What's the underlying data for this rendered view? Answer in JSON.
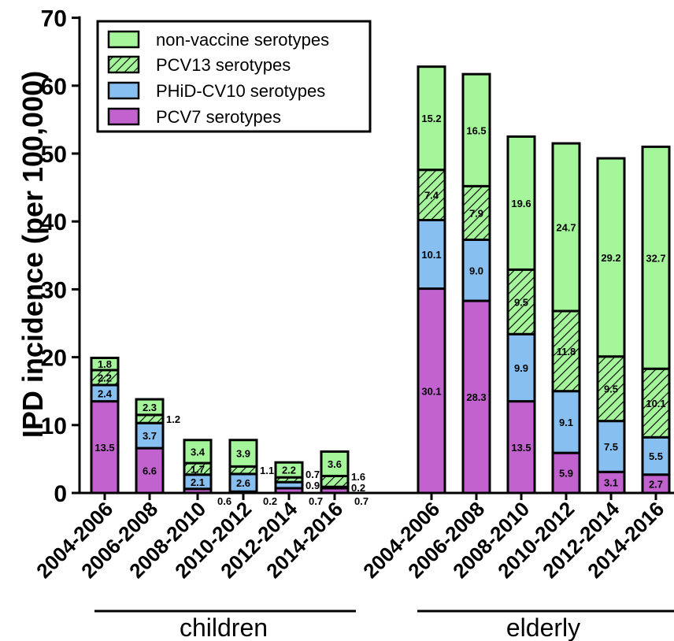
{
  "chart_data": {
    "type": "bar",
    "stacked": true,
    "ylabel": "IPD incidence (per 100,000)",
    "ylim": [
      0,
      70
    ],
    "yticks": [
      0,
      10,
      20,
      30,
      40,
      50,
      60,
      70
    ],
    "legend": "top-left",
    "groups": [
      {
        "label": "children",
        "categories": [
          "2004-2006",
          "2006-2008",
          "2008-2010",
          "2010-2012",
          "2012-2014",
          "2014-2016"
        ]
      },
      {
        "label": "elderly",
        "categories": [
          "2004-2006",
          "2006-2008",
          "2008-2010",
          "2010-2012",
          "2012-2014",
          "2014-2016"
        ]
      }
    ],
    "series": [
      {
        "name": "PCV7 serotypes",
        "color": "#c162cf",
        "pattern": "solid",
        "values": [
          13.5,
          6.6,
          0.6,
          0.2,
          0.7,
          0.7,
          30.1,
          28.3,
          13.5,
          5.9,
          3.1,
          2.7
        ],
        "labels": [
          "13.5",
          "6.6",
          "0.6",
          "0.2",
          "0.7",
          "0.7",
          "30.1",
          "28.3",
          "13.5",
          "5.9",
          "3.1",
          "2.7"
        ]
      },
      {
        "name": "PHiD-CV10 serotypes",
        "color": "#86bff0",
        "pattern": "solid",
        "values": [
          2.4,
          3.7,
          2.1,
          2.6,
          0.9,
          0.2,
          10.1,
          9.0,
          9.9,
          9.1,
          7.5,
          5.5
        ],
        "labels": [
          "2.4",
          "3.7",
          "2.1",
          "2.6",
          "0.9",
          "0.2",
          "10.1",
          "9.0",
          "9.9",
          "9.1",
          "7.5",
          "5.5"
        ]
      },
      {
        "name": "PCV13 serotypes",
        "color": "#a5f59a",
        "pattern": "hatched",
        "values": [
          2.2,
          1.2,
          1.7,
          1.1,
          0.7,
          1.6,
          7.4,
          7.9,
          9.5,
          11.8,
          9.5,
          10.1
        ],
        "labels": [
          "2.2",
          "1.2",
          "1.7",
          "1.1",
          "0.7",
          "1.6",
          "7.4",
          "7.9",
          "9.5",
          "11.8",
          "9.5",
          "10.1"
        ]
      },
      {
        "name": "non-vaccine serotypes",
        "color": "#a5f59a",
        "pattern": "solid",
        "values": [
          1.8,
          2.3,
          3.4,
          3.9,
          2.2,
          3.6,
          15.2,
          16.5,
          19.6,
          24.7,
          29.2,
          32.7
        ],
        "labels": [
          "1.8",
          "2.3",
          "3.4",
          "3.9",
          "2.2",
          "3.6",
          "15.2",
          "16.5",
          "19.6",
          "24.7",
          "29.2",
          "32.7"
        ]
      }
    ],
    "legend_order": [
      "non-vaccine serotypes",
      "PCV13 serotypes",
      "PHiD-CV10 serotypes",
      "PCV7 serotypes"
    ]
  }
}
